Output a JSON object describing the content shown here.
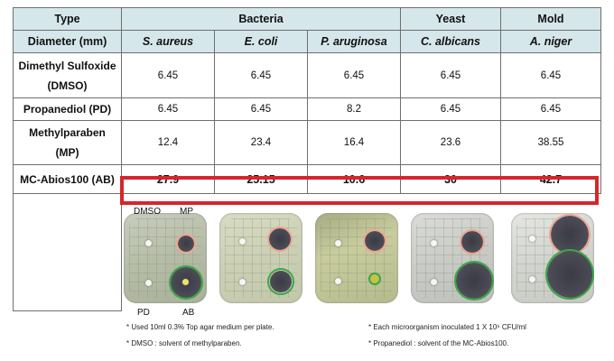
{
  "header": {
    "type_label": "Type",
    "diameter_label": "Diameter (mm)",
    "groups": [
      "Bacteria",
      "Yeast",
      "Mold"
    ],
    "organisms": [
      "S. aureus",
      "E. coli",
      "P. aruginosa",
      "C. albicans",
      "A. niger"
    ]
  },
  "rows": [
    {
      "label_line1": "Dimethyl Sulfoxide",
      "label_line2": "(DMSO)",
      "values": [
        "6.45",
        "6.45",
        "6.45",
        "6.45",
        "6.45"
      ]
    },
    {
      "label_line1": "Propanediol (PD)",
      "label_line2": "",
      "values": [
        "6.45",
        "6.45",
        "8.2",
        "6.45",
        "6.45"
      ]
    },
    {
      "label_line1": "Methylparaben",
      "label_line2": "(MP)",
      "values": [
        "12.4",
        "23.4",
        "16.4",
        "23.6",
        "38.55"
      ]
    },
    {
      "label_line1": "MC-Abios100 (AB)",
      "label_line2": "",
      "values": [
        "27.9",
        "25.15",
        "10.6",
        "30",
        "42.7"
      ]
    }
  ],
  "plate_labels": {
    "dmso": "DMSO",
    "mp": "MP",
    "pd": "PD",
    "ab": "AB"
  },
  "notes": {
    "n1": "* Used 10ml 0.3% Top agar medium per plate.",
    "n2": "* Each microorganism inoculated 1 X 10⁶ CFU/ml",
    "n3": "* DMSO : solvent of methylparaben.",
    "n4": "* Propanediol : solvent of the MC-Abios100."
  },
  "colors": {
    "header_bg": "#d5e7eb",
    "highlight": "#d8252b",
    "mp_ring": "#f0a592",
    "ab_ring": "#3aa845"
  }
}
